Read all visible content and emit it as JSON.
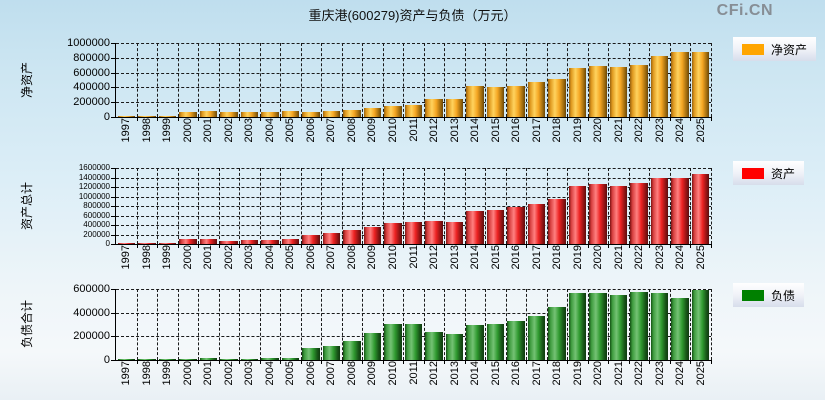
{
  "page": {
    "title": "重庆港(600279)资产与负债（万元）",
    "watermark": "CFi.CN"
  },
  "colors": {
    "net_assets": "#FFA500",
    "assets": "#FF0000",
    "liabilities": "#008000",
    "grid": "#000000",
    "background_top": "#BFDEEE",
    "background_bottom": "#F5F8FA"
  },
  "chart_data": [
    {
      "type": "bar",
      "title": "净资产",
      "ylabel": "净资产",
      "legend": "净资产",
      "color": "#FFA500",
      "grid": true,
      "legend_position": "right",
      "ylim": [
        0,
        1000000
      ],
      "ytick_step": 200000,
      "categories": [
        "1997",
        "1998",
        "1999",
        "2000",
        "2001",
        "2002",
        "2003",
        "2004",
        "2005",
        "2006",
        "2007",
        "2008",
        "2009",
        "2010",
        "2011",
        "2012",
        "2013",
        "2014",
        "2015",
        "2016",
        "2017",
        "2018",
        "2019",
        "2020",
        "2021",
        "2022",
        "2023",
        "2024",
        "2025"
      ],
      "values": [
        20000,
        20000,
        13000,
        66000,
        77000,
        73000,
        68000,
        73000,
        77000,
        73000,
        86000,
        96000,
        117000,
        148000,
        168000,
        250000,
        250000,
        422000,
        405000,
        425000,
        475000,
        515000,
        660000,
        683000,
        680000,
        697000,
        822000,
        880000,
        880000
      ]
    },
    {
      "type": "bar",
      "title": "资产",
      "ylabel": "资产总计",
      "legend": "资产",
      "color": "#FF0000",
      "grid": true,
      "legend_position": "right",
      "ylim": [
        0,
        1600000
      ],
      "ytick_step": 200000,
      "categories": [
        "1997",
        "1998",
        "1999",
        "2000",
        "2001",
        "2002",
        "2003",
        "2004",
        "2005",
        "2006",
        "2007",
        "2008",
        "2009",
        "2010",
        "2011",
        "2012",
        "2013",
        "2014",
        "2015",
        "2016",
        "2017",
        "2018",
        "2019",
        "2020",
        "2021",
        "2022",
        "2023",
        "2024",
        "2025"
      ],
      "values": [
        25000,
        24000,
        15000,
        105000,
        112000,
        70000,
        88000,
        88000,
        98000,
        196000,
        225000,
        290000,
        365000,
        449000,
        463000,
        491000,
        456000,
        702000,
        716000,
        772000,
        842000,
        947000,
        1228000,
        1256000,
        1228000,
        1291000,
        1389000,
        1389000,
        1481000
      ]
    },
    {
      "type": "bar",
      "title": "负债",
      "ylabel": "负债合计",
      "legend": "负债",
      "color": "#008000",
      "grid": true,
      "legend_position": "right",
      "ylim": [
        0,
        600000
      ],
      "ytick_step": 200000,
      "categories": [
        "1997",
        "1998",
        "1999",
        "2000",
        "2001",
        "2002",
        "2003",
        "2004",
        "2005",
        "2006",
        "2007",
        "2008",
        "2009",
        "2010",
        "2011",
        "2012",
        "2013",
        "2014",
        "2015",
        "2016",
        "2017",
        "2018",
        "2019",
        "2020",
        "2021",
        "2022",
        "2023",
        "2024",
        "2025"
      ],
      "values": [
        11000,
        8500,
        7000,
        8500,
        18000,
        10000,
        8500,
        21000,
        13000,
        100000,
        115000,
        163000,
        226000,
        303000,
        308000,
        240000,
        222000,
        296000,
        307000,
        330000,
        369000,
        445000,
        569000,
        569000,
        549000,
        577000,
        569000,
        521000,
        589000
      ]
    }
  ]
}
